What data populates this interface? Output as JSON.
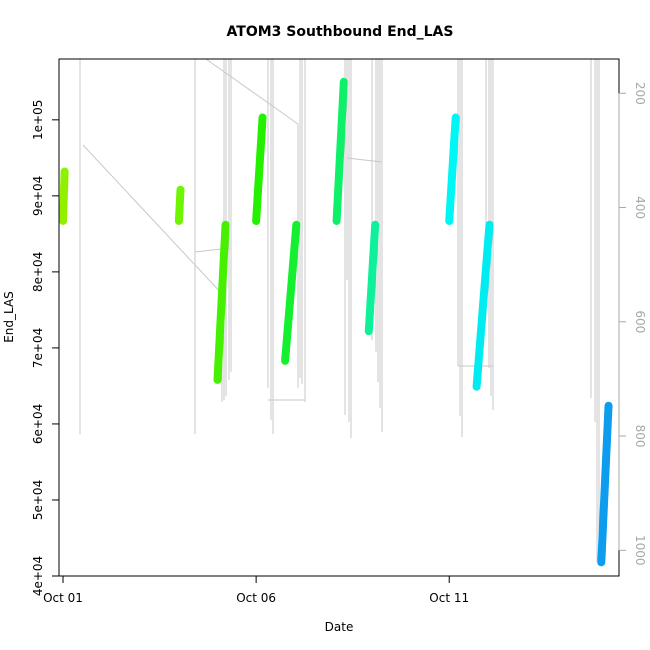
{
  "chart_data": {
    "type": "line",
    "title": "ATOM3 Southbound End_LAS",
    "xlabel": "Date",
    "ylabel": "End_LAS",
    "x_ticks": [
      {
        "date": "2024-10-01",
        "label": "Oct 01"
      },
      {
        "date": "2024-10-06",
        "label": "Oct 06"
      },
      {
        "date": "2024-10-11",
        "label": "Oct 11"
      }
    ],
    "xlim": [
      "2024-09-30T21:30",
      "2024-10-15T09:30"
    ],
    "y_ticks": [
      {
        "value": 40000,
        "label": "4e+04"
      },
      {
        "value": 50000,
        "label": "5e+04"
      },
      {
        "value": 60000,
        "label": "6e+04"
      },
      {
        "value": 70000,
        "label": "7e+04"
      },
      {
        "value": 80000,
        "label": "8e+04"
      },
      {
        "value": 90000,
        "label": "9e+04"
      },
      {
        "value": 100000,
        "label": "1e+05"
      }
    ],
    "ylim": [
      40000,
      108000
    ],
    "right_axis": {
      "color": "#a8a8a8",
      "ticks": [
        {
          "value": 200,
          "label": "200"
        },
        {
          "value": 400,
          "label": "400"
        },
        {
          "value": 600,
          "label": "600"
        },
        {
          "value": 800,
          "label": "800"
        },
        {
          "value": 1000,
          "label": "1000"
        }
      ],
      "range": [
        1045,
        140
      ]
    },
    "series": [
      {
        "color": "#8ff000",
        "values": [
          {
            "x": "2024-10-01T00:00",
            "y": 86700
          },
          {
            "x": "2024-10-01T01:00",
            "y": 93200
          }
        ]
      },
      {
        "color": "#6ef500",
        "values": [
          {
            "x": "2024-10-04T00:00",
            "y": 86700
          },
          {
            "x": "2024-10-04T01:00",
            "y": 90800
          }
        ]
      },
      {
        "color": "#45f000",
        "values": [
          {
            "x": "2024-10-05T00:00",
            "y": 65800
          },
          {
            "x": "2024-10-05T05:00",
            "y": 86200
          }
        ]
      },
      {
        "color": "#24f000",
        "values": [
          {
            "x": "2024-10-06T00:00",
            "y": 86700
          },
          {
            "x": "2024-10-06T04:00",
            "y": 100300
          }
        ]
      },
      {
        "color": "#14f030",
        "values": [
          {
            "x": "2024-10-06T18:00",
            "y": 68300
          },
          {
            "x": "2024-10-07T01:00",
            "y": 86200
          }
        ]
      },
      {
        "color": "#0ef068",
        "values": [
          {
            "x": "2024-10-08T02:00",
            "y": 86700
          },
          {
            "x": "2024-10-08T06:30",
            "y": 105000
          }
        ]
      },
      {
        "color": "#0ff09a",
        "values": [
          {
            "x": "2024-10-08T22:00",
            "y": 72200
          },
          {
            "x": "2024-10-09T02:00",
            "y": 86200
          }
        ]
      },
      {
        "color": "#00f5f5",
        "values": [
          {
            "x": "2024-10-11T00:00",
            "y": 86700
          },
          {
            "x": "2024-10-11T04:00",
            "y": 100300
          }
        ]
      },
      {
        "color": "#00ecf0",
        "values": [
          {
            "x": "2024-10-11T17:00",
            "y": 64900
          },
          {
            "x": "2024-10-12T01:00",
            "y": 86200
          }
        ]
      },
      {
        "color": "#0d9cee",
        "values": [
          {
            "x": "2024-10-14T22:30",
            "y": 41800
          },
          {
            "x": "2024-10-15T03:00",
            "y": 62400
          }
        ]
      }
    ]
  }
}
